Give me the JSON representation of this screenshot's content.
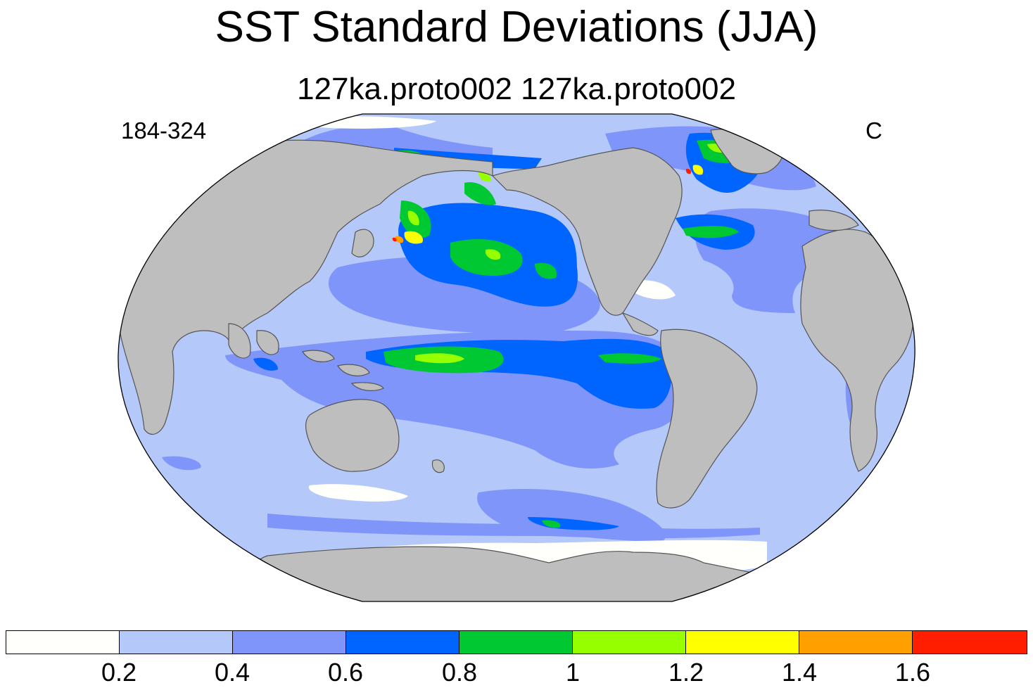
{
  "title": "SST Standard Deviations (JJA)",
  "subtitle": "127ka.proto002  127ka.proto002",
  "left_label": "184-324",
  "right_label": "C",
  "colorbar": {
    "labels": [
      "0.2",
      "0.4",
      "0.6",
      "0.8",
      "1",
      "1.2",
      "1.4",
      "1.6"
    ],
    "colors": [
      "#fffffc",
      "#b4c8fa",
      "#8095fa",
      "#0064ff",
      "#00c832",
      "#96ff00",
      "#ffff00",
      "#ffa000",
      "#ff1e00"
    ]
  },
  "map_colors": {
    "land": "#bebebe",
    "coast": "#555555"
  }
}
